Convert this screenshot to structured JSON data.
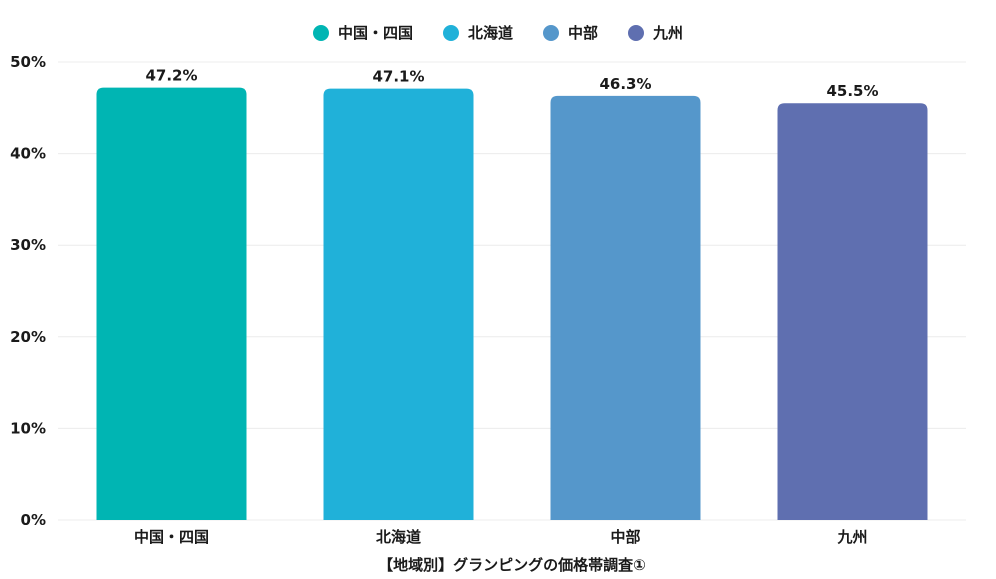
{
  "chart_data": {
    "type": "bar",
    "title": "",
    "xlabel": "【地域別】グランピングの価格帯調査①",
    "ylabel": "",
    "ylim": [
      0,
      50
    ],
    "yticks": [
      0,
      10,
      20,
      30,
      40,
      50
    ],
    "ytick_labels": [
      "0%",
      "10%",
      "20%",
      "30%",
      "40%",
      "50%"
    ],
    "categories": [
      "中国・四国",
      "北海道",
      "中部",
      "九州"
    ],
    "values": [
      47.2,
      47.1,
      46.3,
      45.5
    ],
    "data_labels": [
      "47.2%",
      "47.1%",
      "46.3%",
      "45.5%"
    ],
    "colors": [
      "#00b5b3",
      "#20b1d9",
      "#5597cb",
      "#5f6fb0"
    ],
    "legend": {
      "position": "top-center",
      "entries": [
        "中国・四国",
        "北海道",
        "中部",
        "九州"
      ]
    },
    "grid": true
  }
}
